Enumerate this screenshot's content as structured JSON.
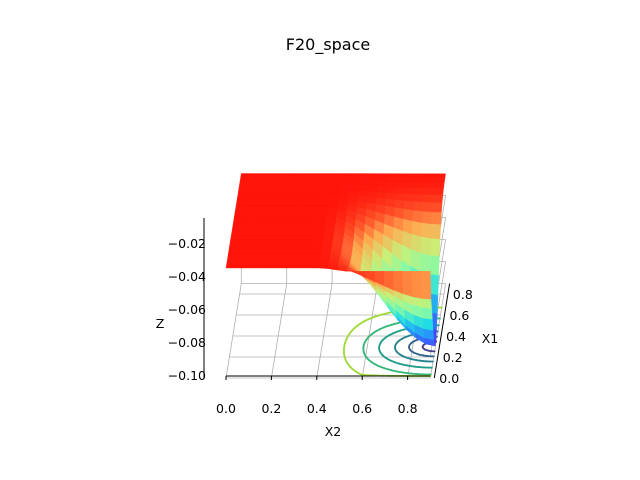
{
  "chart_data": {
    "type": "surface3d",
    "title": "F20_space",
    "xlabel": "X1",
    "ylabel": "X2",
    "zlabel": "Z",
    "x_ticks": [
      "0.0",
      "0.2",
      "0.4",
      "0.6",
      "0.8"
    ],
    "y_ticks": [
      "0.0",
      "0.2",
      "0.4",
      "0.6",
      "0.8"
    ],
    "z_ticks": [
      "−0.02",
      "−0.04",
      "−0.06",
      "−0.08",
      "−0.10"
    ],
    "xlim": [
      0,
      0.9
    ],
    "ylim": [
      0,
      0.9
    ],
    "zlim": [
      -0.1,
      0
    ],
    "colormap": "rainbow",
    "contour_levels": [
      -0.095,
      -0.085,
      -0.07,
      -0.05,
      -0.03,
      -0.01
    ],
    "contour_colors": [
      "#433e85",
      "#33638d",
      "#26828e",
      "#1f9e89",
      "#35b779",
      "#a0da39"
    ],
    "grid": true,
    "surface": {
      "description_values": "plateau near 0 for small X1; deep minimum about -0.098 near X1≈0.3, X2≈0.85"
    }
  }
}
